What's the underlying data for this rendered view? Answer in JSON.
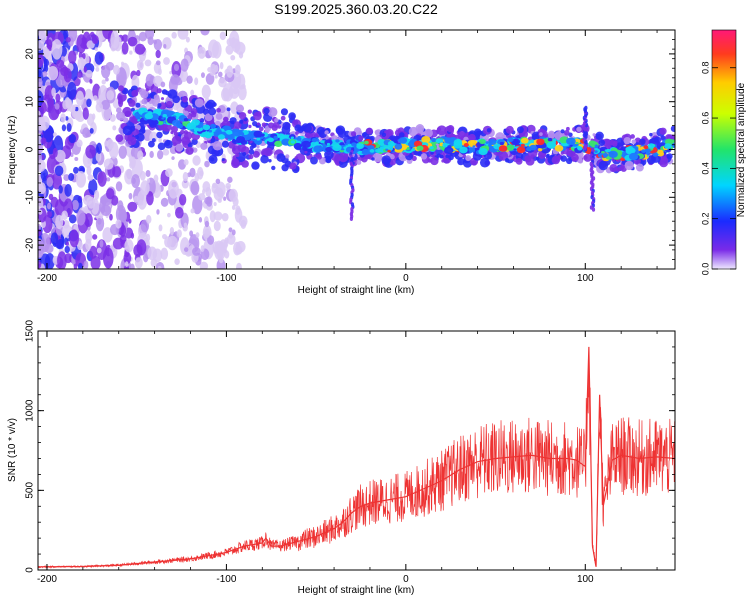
{
  "figure": {
    "title": "S199.2025.360.03.20.C22"
  },
  "chart_data": [
    {
      "type": "heatmap",
      "xlabel": "Height of straight line (km)",
      "ylabel": "Frequency (Hz)",
      "xlim": [
        -205,
        150
      ],
      "ylim": [
        -25,
        25
      ],
      "xticks": [
        -200,
        -100,
        0,
        100
      ],
      "xtick_labels": [
        "-200",
        "-100",
        "0",
        "100"
      ],
      "yticks": [
        -20,
        -10,
        0,
        10,
        20
      ],
      "ytick_labels": [
        "-20",
        "-10",
        "0",
        "10",
        "20"
      ],
      "ridge": {
        "x": [
          -150,
          -130,
          -110,
          -90,
          -70,
          -50,
          -30,
          -10,
          0,
          20,
          40,
          60,
          80,
          100,
          110,
          120,
          140,
          150
        ],
        "y": [
          7,
          6.5,
          4,
          2.5,
          2,
          1,
          0.5,
          0.5,
          1,
          1,
          0.5,
          1,
          1,
          1,
          -1,
          -1,
          0,
          1
        ]
      },
      "colorbar": {
        "label": "Normalized spectral amplitude",
        "range": [
          0,
          0.95
        ],
        "ticks": [
          0.0,
          0.2,
          0.4,
          0.6,
          0.8
        ],
        "tick_labels": [
          "0.0",
          "0.2",
          "0.4",
          "0.6",
          "0.8"
        ]
      }
    },
    {
      "type": "line",
      "xlabel": "Height of straight line (km)",
      "ylabel": "SNR (10 * v/v)",
      "xlim": [
        -205,
        150
      ],
      "ylim": [
        0,
        1500
      ],
      "xticks": [
        -200,
        -100,
        0,
        100
      ],
      "xtick_labels": [
        "-200",
        "-100",
        "0",
        "100"
      ],
      "yticks": [
        0,
        500,
        1000,
        1500
      ],
      "ytick_labels": [
        "0",
        "500",
        "1000",
        "1500"
      ],
      "series": [
        {
          "name": "SNR",
          "color": "#ee3333",
          "x": [
            -205,
            -180,
            -160,
            -140,
            -120,
            -100,
            -90,
            -80,
            -78,
            -75,
            -70,
            -60,
            -50,
            -40,
            -35,
            -30,
            -25,
            -20,
            -15,
            -10,
            -5,
            0,
            10,
            20,
            30,
            40,
            50,
            60,
            70,
            80,
            90,
            95,
            100,
            102,
            104,
            106,
            108,
            110,
            115,
            120,
            130,
            140,
            150
          ],
          "y": [
            20,
            22,
            30,
            50,
            70,
            110,
            150,
            170,
            200,
            150,
            150,
            180,
            210,
            260,
            300,
            360,
            400,
            420,
            430,
            440,
            450,
            460,
            510,
            560,
            630,
            680,
            700,
            710,
            720,
            700,
            700,
            690,
            650,
            1400,
            150,
            20,
            1100,
            400,
            690,
            720,
            700,
            710,
            700
          ]
        }
      ]
    }
  ]
}
